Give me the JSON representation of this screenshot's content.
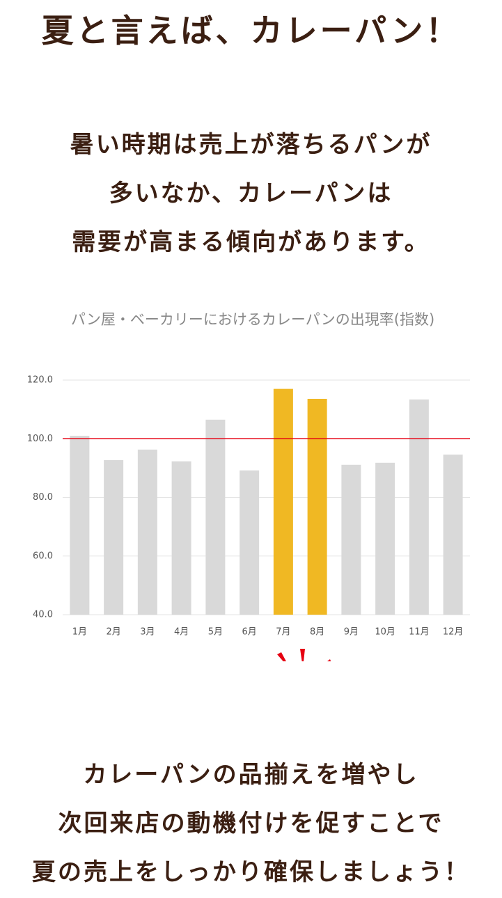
{
  "header": {
    "title": "夏と言えば、カレーパン！"
  },
  "lead": {
    "lines": [
      "暑い時期は売上が落ちるパンが",
      "多いなか、カレーパンは",
      "需要が高まる傾向があります。"
    ]
  },
  "chart_data": {
    "type": "bar",
    "title": "パン屋・ベーカリーにおけるカレーパンの出現率(指数)",
    "categories": [
      "1月",
      "2月",
      "3月",
      "4月",
      "5月",
      "6月",
      "7月",
      "8月",
      "9月",
      "10月",
      "11月",
      "12月"
    ],
    "values": [
      101.0,
      92.7,
      96.3,
      92.3,
      106.5,
      89.2,
      117.0,
      113.6,
      91.1,
      91.8,
      113.4,
      94.6
    ],
    "colors": [
      "#d9d9d9",
      "#d9d9d9",
      "#d9d9d9",
      "#d9d9d9",
      "#d9d9d9",
      "#d9d9d9",
      "#f0b823",
      "#f0b823",
      "#d9d9d9",
      "#d9d9d9",
      "#d9d9d9",
      "#d9d9d9"
    ],
    "ylim": [
      40,
      120
    ],
    "yticks": [
      {
        "value": 40,
        "label": "40.0"
      },
      {
        "value": 60,
        "label": "60.0"
      },
      {
        "value": 80,
        "label": "80.0"
      },
      {
        "value": 100,
        "label": "100.0"
      },
      {
        "value": 120,
        "label": "120.0"
      }
    ],
    "grid": true,
    "reference_line": {
      "value": 100,
      "color": "#e60012"
    }
  },
  "footer": {
    "lines": [
      "カレーパンの品揃えを増やし",
      "次回来店の動機付けを促すことで",
      "夏の売上をしっかり確保しましょう！"
    ]
  }
}
